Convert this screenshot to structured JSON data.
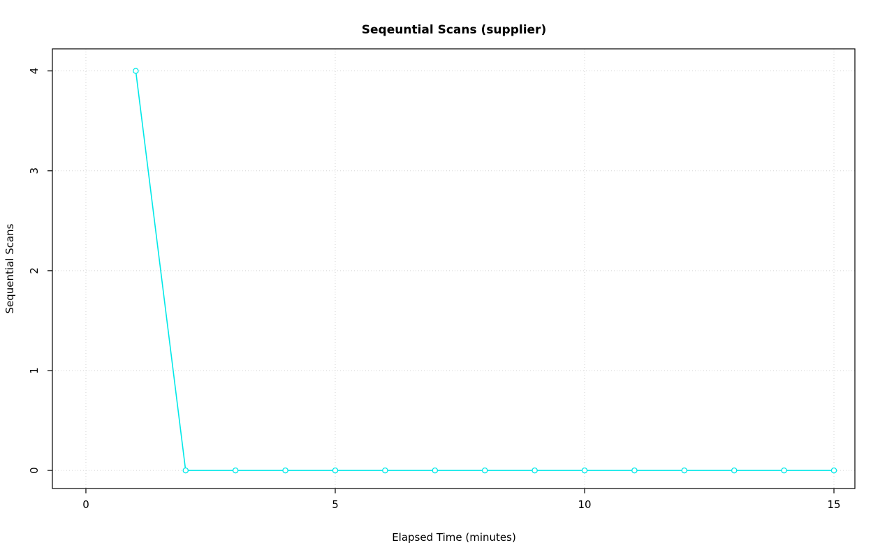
{
  "chart_data": {
    "type": "line",
    "title": "Seqeuntial Scans (supplier)",
    "xlabel": "Elapsed Time (minutes)",
    "ylabel": "Sequential Scans",
    "x": [
      1,
      2,
      3,
      4,
      5,
      6,
      7,
      8,
      9,
      10,
      11,
      12,
      13,
      14,
      15
    ],
    "y": [
      4,
      0,
      0,
      0,
      0,
      0,
      0,
      0,
      0,
      0,
      0,
      0,
      0,
      0,
      0
    ],
    "x_ticks": [
      0,
      5,
      10,
      15
    ],
    "y_ticks": [
      0,
      1,
      2,
      3,
      4
    ],
    "xlim": [
      -0.672,
      15.42
    ],
    "ylim": [
      -0.181,
      4.221
    ],
    "line_color": "#00E8E8",
    "marker": "open-circle",
    "marker_color": "#00E8E8",
    "grid": true,
    "grid_color": "#D3D3D3",
    "grid_style": "dotted",
    "box_color": "#000000",
    "legend": null
  }
}
